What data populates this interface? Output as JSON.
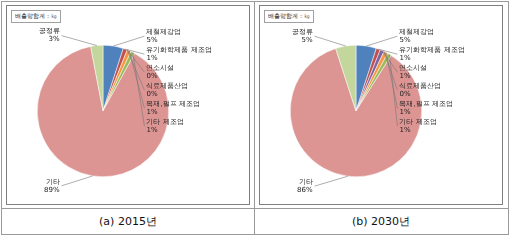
{
  "chart_data": [
    {
      "type": "pie",
      "title": "배출량합계 : ㎏",
      "caption": "(a) 2015년",
      "categories": [
        "제철제강업",
        "유기화학제품 제조업",
        "연소시설",
        "식료제품산업",
        "목재,펄프 제조업",
        "기타 제조업",
        "기타",
        "공정류"
      ],
      "values": [
        5,
        1,
        0,
        0,
        1,
        1,
        89,
        3
      ],
      "value_labels": [
        "5%",
        "1%",
        "0%",
        "0%",
        "1%",
        "1%",
        "89%",
        "3%"
      ],
      "colors": [
        "#4f81bd",
        "#c0504d",
        "#8064a2",
        "#4bacc6",
        "#f79646",
        "#9bbb59",
        "#dc9593",
        "#c3d69b"
      ],
      "data_labels": true,
      "legend": false
    },
    {
      "type": "pie",
      "title": "배출량합계 : ㎏",
      "caption": "(b) 2030년",
      "categories": [
        "제철제강업",
        "유기화학제품 제조업",
        "연소시설",
        "식료제품산업",
        "목재,펄프 제조업",
        "기타 제조업",
        "기타",
        "공정류"
      ],
      "values": [
        5,
        1,
        1,
        0,
        1,
        1,
        86,
        5
      ],
      "value_labels": [
        "5%",
        "1%",
        "1%",
        "0%",
        "1%",
        "1%",
        "86%",
        "5%"
      ],
      "colors": [
        "#4f81bd",
        "#c0504d",
        "#8064a2",
        "#4bacc6",
        "#f79646",
        "#9bbb59",
        "#dc9593",
        "#c3d69b"
      ],
      "data_labels": true,
      "legend": false
    }
  ]
}
